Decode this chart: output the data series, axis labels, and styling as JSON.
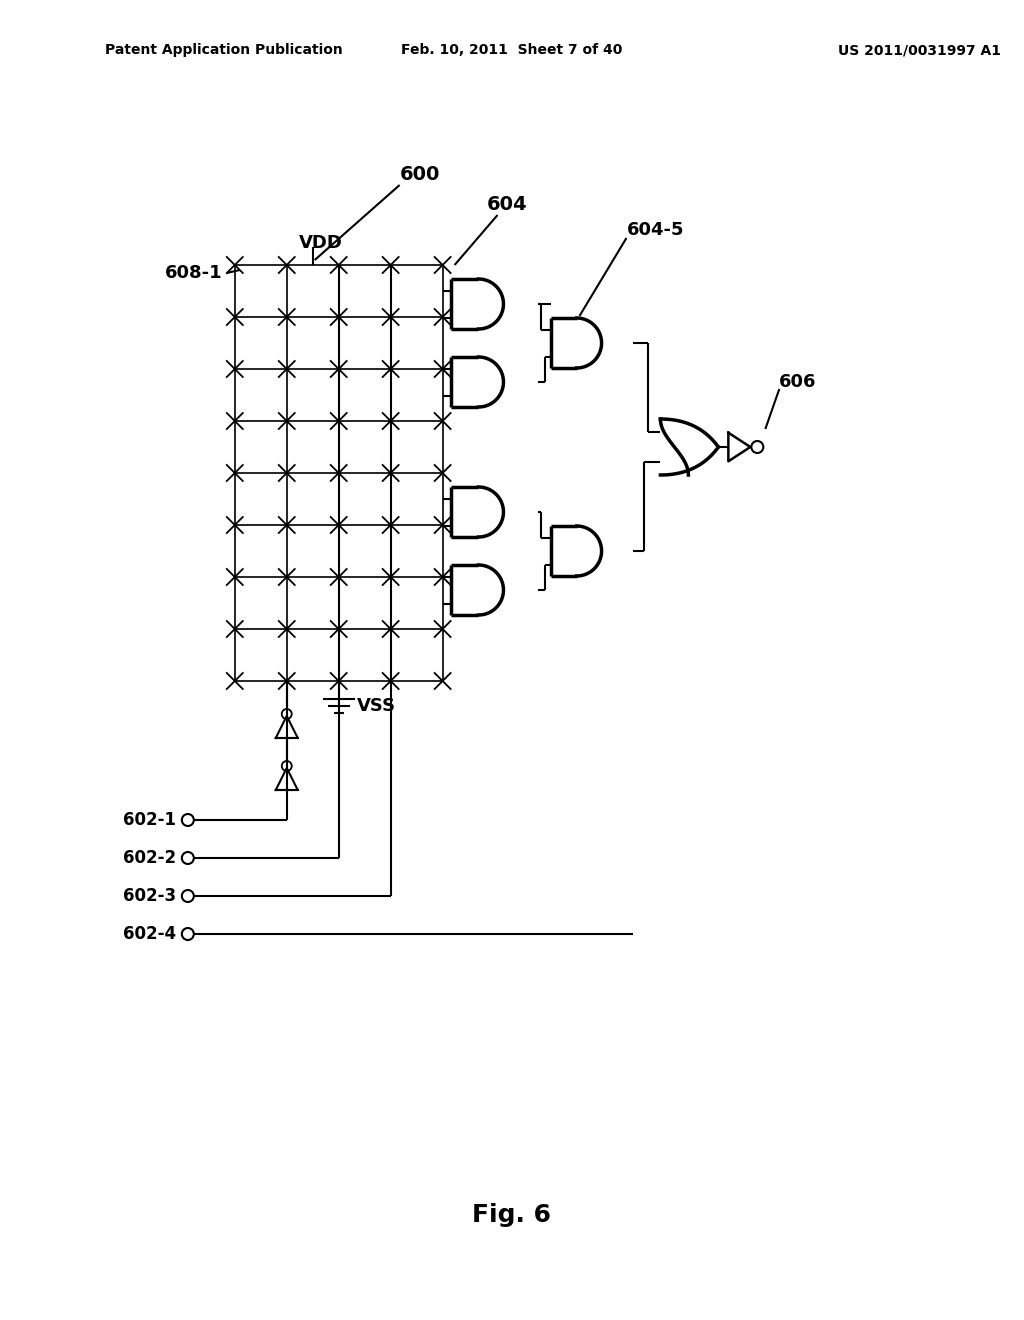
{
  "title": "Fig. 6",
  "header_left": "Patent Application Publication",
  "header_center": "Feb. 10, 2011  Sheet 7 of 40",
  "header_right": "US 2011/0031997 A1",
  "background_color": "#ffffff",
  "text_color": "#000000",
  "label_600": "600",
  "label_604": "604",
  "label_604_5": "604-5",
  "label_606": "606",
  "label_608_1": "608-1",
  "label_VDD": "VDD",
  "label_VSS": "VSS",
  "label_602_1": "602-1",
  "label_602_2": "602-2",
  "label_602_3": "602-3",
  "label_602_4": "602-4"
}
